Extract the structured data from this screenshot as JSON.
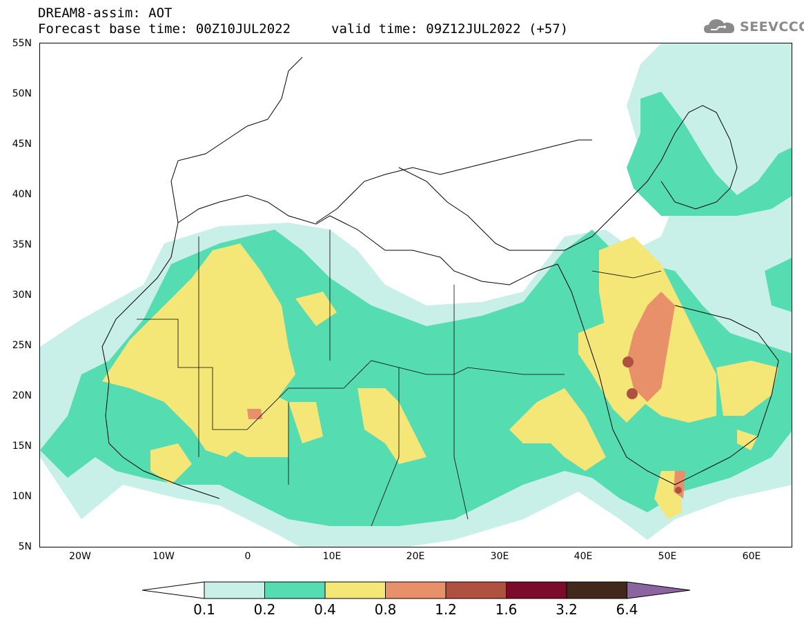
{
  "header": {
    "title": "DREAM8-assim: AOT",
    "base_time_line": "Forecast base time: 00Z10JUL2022",
    "valid_time_line": "valid time: 09Z12JUL2022 (+57)"
  },
  "logo": {
    "text": "SEEVCCC",
    "icon": "cloud-icon"
  },
  "map": {
    "lat_labels": [
      "55N",
      "50N",
      "45N",
      "40N",
      "35N",
      "30N",
      "25N",
      "20N",
      "15N",
      "10N",
      "5N"
    ],
    "lon_labels": [
      "20W",
      "10W",
      "0",
      "10E",
      "20E",
      "30E",
      "40E",
      "50E",
      "60E"
    ]
  },
  "colorbar": {
    "levels": [
      "0.1",
      "0.2",
      "0.4",
      "0.8",
      "1.2",
      "1.6",
      "3.2",
      "6.4"
    ],
    "colors": [
      "#c8f0e8",
      "#55dcb0",
      "#f5e678",
      "#e8906a",
      "#b05040",
      "#7c0a2a",
      "#40281a",
      "#8c64a0"
    ],
    "under_color": "#ffffff"
  }
}
